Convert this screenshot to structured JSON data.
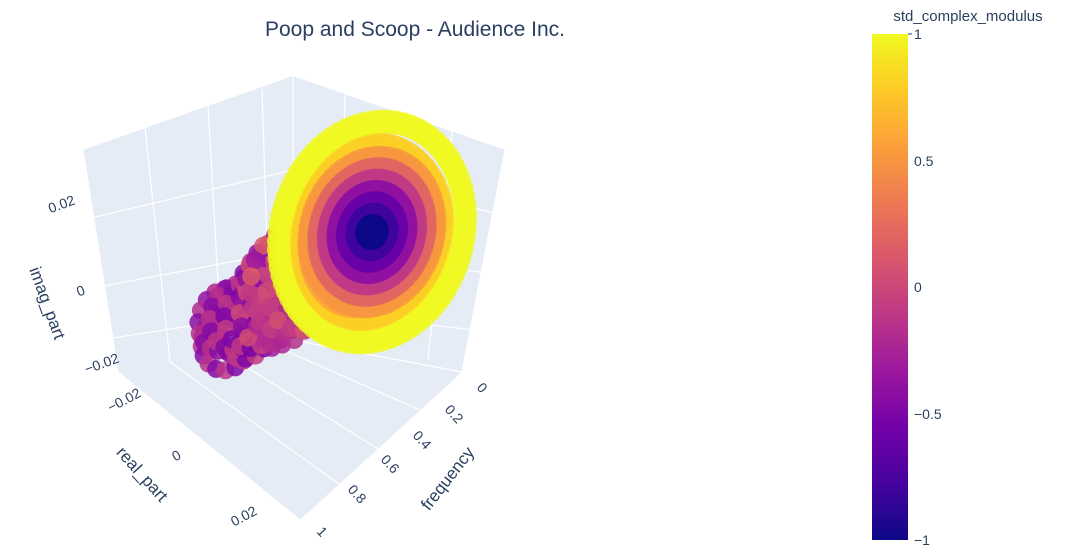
{
  "chart_data": {
    "type": "scatter",
    "title": "Poop and Scoop - Audience Inc.",
    "x_axis": {
      "title": "real_part",
      "ticks": [
        "−0.02",
        "0",
        "0.02"
      ],
      "range": [
        -0.03,
        0.03
      ]
    },
    "y_axis": {
      "title": "frequency",
      "ticks": [
        "0",
        "0.2",
        "0.4",
        "0.6",
        "0.8",
        "1"
      ],
      "range": [
        0,
        1
      ]
    },
    "z_axis": {
      "title": "imag_part",
      "ticks": [
        "−0.02",
        "0",
        "0.02"
      ],
      "range": [
        -0.03,
        0.03
      ]
    },
    "colorbar": {
      "title": "std_complex_modulus",
      "ticks": [
        "1",
        "0.5",
        "0",
        "−0.5",
        "−1"
      ],
      "range": [
        -1,
        1
      ],
      "colorscale": [
        "#0d0887",
        "#46039f",
        "#7201a8",
        "#9c179e",
        "#bd3786",
        "#d8576b",
        "#ed7953",
        "#fb9f3a",
        "#fdca26",
        "#f0f921"
      ]
    },
    "series": [
      {
        "description_pattern": "circular ring sections in the real/imag plane stacked along frequency",
        "frequency": [
          0.0,
          0.05,
          0.1,
          0.15,
          0.2,
          0.25,
          0.3,
          0.35,
          0.4,
          0.45,
          0.5,
          0.55,
          0.6,
          0.65,
          0.7,
          0.75,
          0.8,
          0.85,
          0.9,
          0.95,
          1.0
        ],
        "ring_radius": [
          0.028,
          0.024,
          0.02,
          0.017,
          0.016,
          0.015,
          0.015,
          0.014,
          0.014,
          0.014,
          0.014,
          0.013,
          0.013,
          0.013,
          0.013,
          0.012,
          0.012,
          0.012,
          0.012,
          0.012,
          0.012
        ],
        "std_complex_modulus_outer": [
          1.0,
          0.8,
          0.6,
          0.4,
          0.2,
          0.1,
          0.0,
          0.0,
          0.0,
          -0.1,
          -0.1,
          -0.2,
          -0.2,
          -0.2,
          -0.3,
          -0.3,
          -0.3,
          -0.3,
          -0.3,
          -0.3,
          -0.3
        ],
        "std_complex_modulus_center": -1.0
      }
    ]
  }
}
